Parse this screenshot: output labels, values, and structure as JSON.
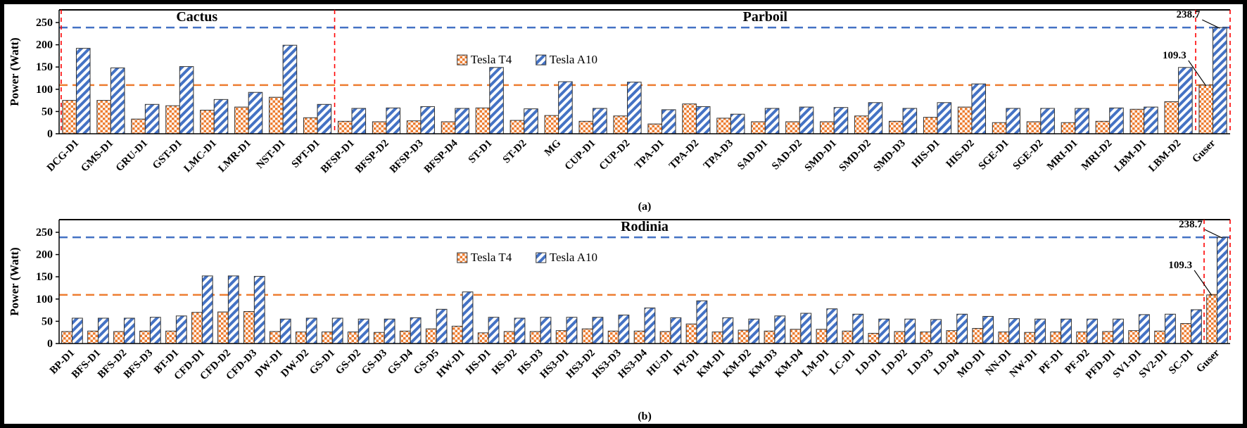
{
  "figure": {
    "ylabel": "Power (Watt)",
    "legend": [
      {
        "name": "Tesla T4",
        "series": "t4"
      },
      {
        "name": "Tesla A10",
        "series": "a10"
      }
    ],
    "colors": {
      "t4": "#ED7D31",
      "a10": "#4472C4",
      "t4_ref_line": "#ED7D31",
      "a10_ref_line": "#4472C4",
      "separator": "#FF0000",
      "axis": "#000000"
    },
    "ref_lines": [
      {
        "value": 238.7,
        "color_key": "a10_ref_line"
      },
      {
        "value": 109.3,
        "color_key": "t4_ref_line"
      }
    ]
  },
  "chart_data": [
    {
      "id": "a",
      "type": "bar",
      "sublabel": "(a)",
      "ylabel": "Power (Watt)",
      "ylim": [
        0,
        250
      ],
      "yticks": [
        0,
        50,
        100,
        150,
        200,
        250
      ],
      "section_titles": [
        {
          "label": "Cactus",
          "from": 0,
          "to": 8
        },
        {
          "label": "Parboil",
          "from": 8,
          "to": 33
        }
      ],
      "separators": [
        0.06,
        8,
        33,
        34
      ],
      "categories": [
        "DCG-D1",
        "GMS-D1",
        "GRU-D1",
        "GST-D1",
        "LMC-D1",
        "LMR-D1",
        "NST-D1",
        "SPT-D1",
        "BFSP-D1",
        "BFSP-D2",
        "BFSP-D3",
        "BFSP-D4",
        "ST-D1",
        "ST-D2",
        "MG",
        "CUP-D1",
        "CUP-D2",
        "TPA-D1",
        "TPA-D2",
        "TPA-D3",
        "SAD-D1",
        "SAD-D2",
        "SMD-D1",
        "SMD-D2",
        "SMD-D3",
        "HIS-D1",
        "HIS-D2",
        "SGE-D1",
        "SGE-D2",
        "MRI-D1",
        "MRI-D2",
        "LBM-D1",
        "LBM-D2",
        "Guser"
      ],
      "series": [
        {
          "name": "Tesla T4",
          "values": [
            75,
            75,
            33,
            63,
            53,
            60,
            82,
            36,
            28,
            27,
            29,
            27,
            58,
            30,
            41,
            28,
            40,
            22,
            67,
            35,
            27,
            27,
            27,
            40,
            28,
            37,
            60,
            25,
            27,
            25,
            28,
            55,
            72,
            109.3
          ]
        },
        {
          "name": "Tesla A10",
          "values": [
            192,
            148,
            66,
            151,
            77,
            93,
            199,
            66,
            57,
            58,
            61,
            57,
            149,
            56,
            117,
            57,
            116,
            54,
            61,
            44,
            57,
            60,
            59,
            70,
            57,
            70,
            112,
            57,
            57,
            57,
            58,
            60,
            149,
            238.7
          ]
        }
      ],
      "annotations": [
        {
          "text": "238.7",
          "series": 1,
          "value": 238.7,
          "dy": -14
        },
        {
          "text": "109.3",
          "series": 0,
          "value": 109.3,
          "dy": -38
        }
      ],
      "legend_pos": {
        "x_frac": 0.34,
        "y_value": 158
      }
    },
    {
      "id": "b",
      "type": "bar",
      "sublabel": "(b)",
      "ylabel": "Power (Watt)",
      "ylim": [
        0,
        250
      ],
      "yticks": [
        0,
        50,
        100,
        150,
        200,
        250
      ],
      "section_titles": [
        {
          "label": "Rodinia",
          "from": 0,
          "to": 45
        }
      ],
      "separators": [
        44,
        45
      ],
      "categories": [
        "BP-D1",
        "BFS-D1",
        "BFS-D2",
        "BFS-D3",
        "BT-D1",
        "CFD-D1",
        "CFD-D2",
        "CFD-D3",
        "DW-D1",
        "DW-D2",
        "GS-D1",
        "GS-D2",
        "GS-D3",
        "GS-D4",
        "GS-D5",
        "HW-D1",
        "HS-D1",
        "HS-D2",
        "HS-D3",
        "HS3-D1",
        "HS3-D2",
        "HS3-D3",
        "HS3-D4",
        "HU-D1",
        "HY-D1",
        "KM-D1",
        "KM-D2",
        "KM-D3",
        "KM-D4",
        "LM-D1",
        "LC-D1",
        "LD-D1",
        "LD-D2",
        "LD-D3",
        "LD-D4",
        "MO-D1",
        "NN-D1",
        "NW-D1",
        "PF-D1",
        "PF-D2",
        "PFD-D1",
        "SV1-D1",
        "SV2-D1",
        "SC-D1",
        "Guser"
      ],
      "series": [
        {
          "name": "Tesla T4",
          "values": [
            27,
            28,
            27,
            28,
            28,
            70,
            71,
            72,
            27,
            26,
            26,
            26,
            25,
            28,
            33,
            39,
            24,
            27,
            27,
            29,
            33,
            28,
            28,
            27,
            44,
            26,
            30,
            28,
            32,
            32,
            28,
            23,
            27,
            26,
            29,
            34,
            26,
            25,
            26,
            26,
            27,
            29,
            28,
            45,
            109.3
          ]
        },
        {
          "name": "Tesla A10",
          "values": [
            57,
            57,
            57,
            59,
            62,
            152,
            152,
            151,
            55,
            57,
            57,
            55,
            55,
            58,
            77,
            116,
            59,
            57,
            59,
            59,
            59,
            64,
            80,
            58,
            96,
            58,
            55,
            62,
            68,
            78,
            66,
            55,
            55,
            54,
            66,
            61,
            56,
            55,
            55,
            55,
            55,
            65,
            66,
            76,
            238.7
          ]
        }
      ],
      "annotations": [
        {
          "text": "238.7",
          "series": 1,
          "value": 238.7,
          "dy": -14
        },
        {
          "text": "109.3",
          "series": 0,
          "value": 109.3,
          "dy": -38
        }
      ],
      "legend_pos": {
        "x_frac": 0.34,
        "y_value": 185
      }
    }
  ]
}
